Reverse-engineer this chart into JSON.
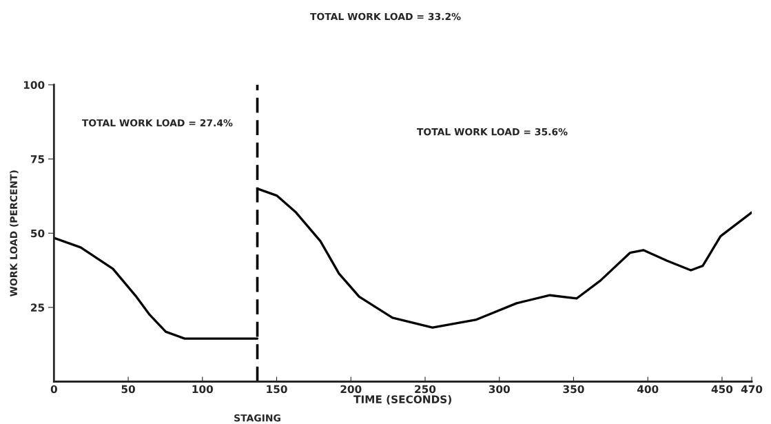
{
  "chart_data": {
    "type": "line",
    "title": "TOTAL WORK LOAD = 33.2%",
    "xlabel": "TIME (SECONDS)",
    "ylabel": "WORK LOAD (PERCENT)",
    "annotations": [
      "TOTAL WORK LOAD = 27.4%",
      "TOTAL WORK LOAD = 35.6%"
    ],
    "series": [
      {
        "color": "#000000",
        "x": [
          0,
          18,
          39.7,
          55,
          64.5,
          75.3,
          88,
          137
        ],
        "values": [
          48.4,
          45.2,
          38,
          28.9,
          22.5,
          16.8,
          14.5,
          14.5
        ]
      },
      {
        "color": "#000000",
        "x": [
          137,
          150,
          163,
          179.5,
          192,
          205.6,
          228,
          255,
          284.6,
          311.6,
          334,
          352,
          368,
          388,
          397,
          413,
          429,
          437,
          449,
          470
        ],
        "values": [
          65,
          62.7,
          57,
          47.3,
          36.4,
          28.6,
          21.5,
          18.2,
          20.9,
          26.4,
          29.1,
          28,
          34,
          43.4,
          44.3,
          40.7,
          37.5,
          39,
          49,
          57
        ]
      }
    ],
    "ref_lines": [
      {
        "axis": "x",
        "value": 137,
        "label": "STAGING",
        "color": "#000000",
        "line_style": "dashed"
      }
    ],
    "xlim": [
      0,
      470
    ],
    "ylim": [
      0,
      100
    ],
    "xticks": [
      0,
      50,
      100,
      150,
      200,
      250,
      300,
      350,
      400,
      450,
      470
    ],
    "yticks": [
      25,
      50,
      75,
      100
    ],
    "grid": false,
    "legend": false,
    "marker": "none",
    "line_style": "solid"
  }
}
